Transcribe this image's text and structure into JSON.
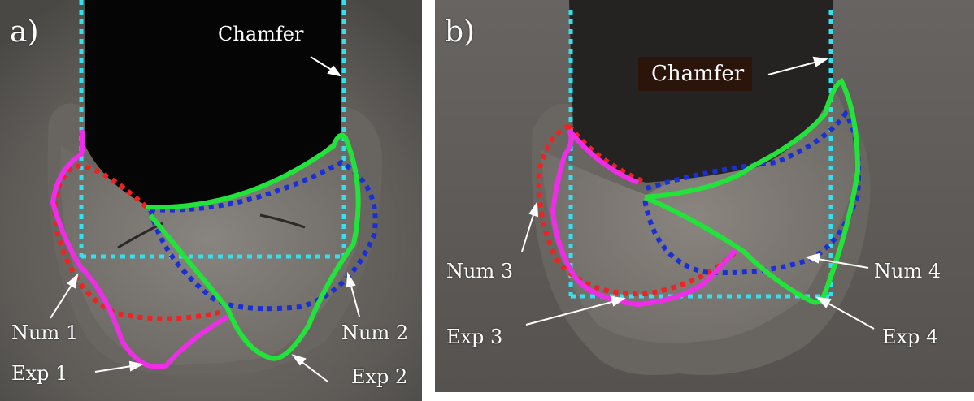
{
  "panels": [
    {
      "letter": "a)",
      "labels": {
        "chamfer": "Chamfer",
        "num_left": "Num 1",
        "exp_left": "Exp 1",
        "num_right": "Num 2",
        "exp_right": "Exp 2"
      }
    },
    {
      "letter": "b)",
      "labels": {
        "chamfer": "Chamfer",
        "num_left": "Num 3",
        "exp_left": "Exp 3",
        "num_right": "Num 4",
        "exp_right": "Exp 4"
      }
    }
  ],
  "colors": {
    "chamfer_outline": "#33e0ee",
    "numerical_left": "#ee2222",
    "numerical_right": "#1a2fd6",
    "experimental_left": "#ee2ee6",
    "experimental_right": "#22e33a",
    "annotation": "#ffffff"
  }
}
